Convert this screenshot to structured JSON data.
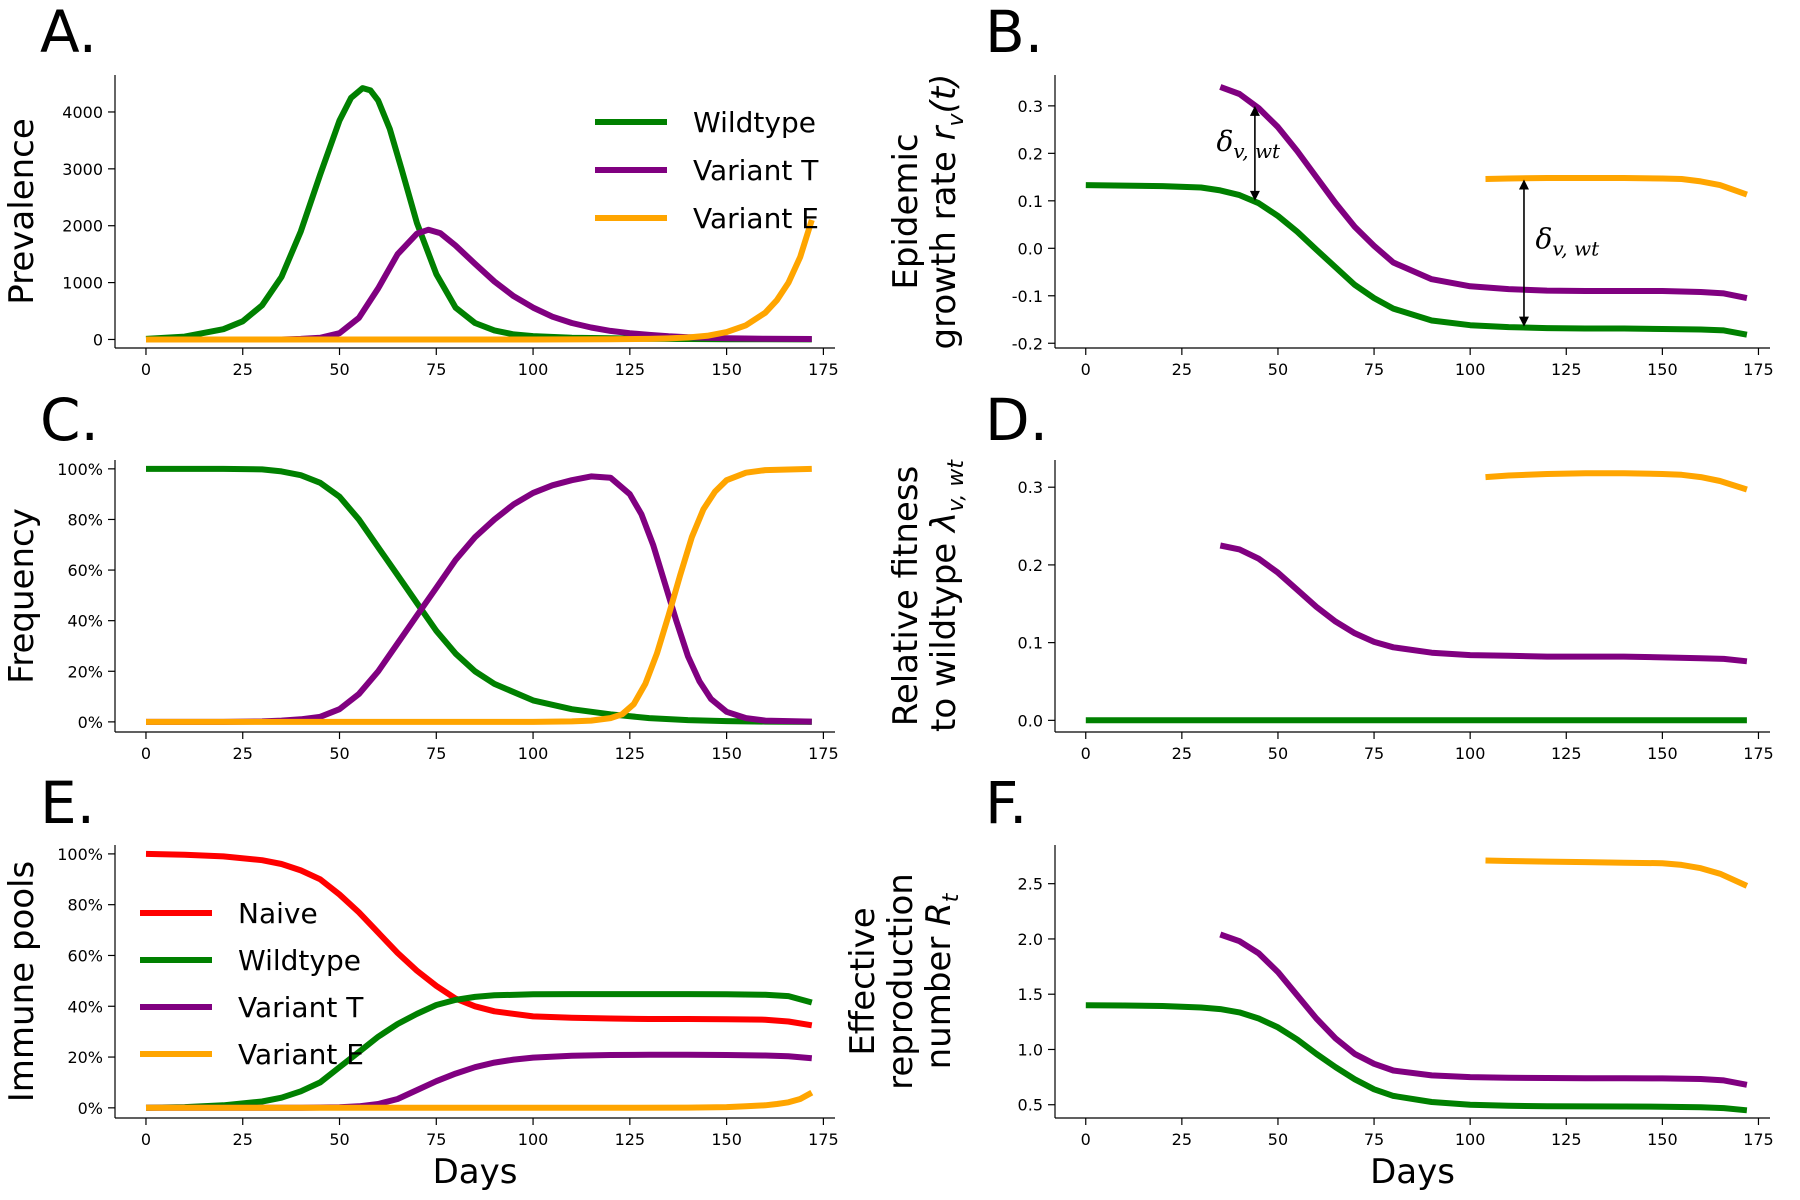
{
  "chart_data": [
    {
      "type": "line",
      "panel": "A.",
      "ylabel": "Prevalence",
      "xlabel": "",
      "xlim": [
        -8,
        178
      ],
      "ylim": [
        -150,
        4650
      ],
      "xticks": [
        0,
        25,
        50,
        75,
        100,
        125,
        150,
        175
      ],
      "yticks": [
        0,
        1000,
        2000,
        3000,
        4000
      ],
      "ytick_format": "plain",
      "legend": {
        "placement": "top-right",
        "entries": [
          "Wildtype",
          "Variant T",
          "Variant E"
        ]
      },
      "series": [
        {
          "name": "Wildtype",
          "color": "#008000",
          "x": [
            0,
            10,
            20,
            25,
            30,
            35,
            40,
            45,
            50,
            53,
            56,
            58,
            60,
            63,
            66,
            70,
            75,
            80,
            85,
            90,
            95,
            100,
            110,
            120,
            130,
            140,
            150,
            160,
            172
          ],
          "y": [
            10,
            50,
            180,
            320,
            600,
            1100,
            1900,
            2900,
            3850,
            4250,
            4420,
            4380,
            4200,
            3700,
            3000,
            2050,
            1150,
            560,
            290,
            160,
            90,
            60,
            30,
            20,
            12,
            8,
            5,
            3,
            2
          ]
        },
        {
          "name": "Variant T",
          "color": "#800080",
          "x": [
            35,
            40,
            45,
            50,
            55,
            60,
            65,
            70,
            73,
            76,
            80,
            85,
            90,
            95,
            100,
            105,
            110,
            115,
            120,
            125,
            130,
            135,
            140,
            145,
            150,
            160,
            172
          ],
          "y": [
            0,
            10,
            30,
            110,
            380,
            900,
            1500,
            1860,
            1930,
            1870,
            1650,
            1330,
            1020,
            760,
            560,
            400,
            290,
            210,
            150,
            110,
            80,
            55,
            40,
            30,
            20,
            12,
            8
          ]
        },
        {
          "name": "Variant E",
          "color": "#ffa500",
          "x": [
            0,
            20,
            40,
            60,
            80,
            100,
            110,
            120,
            130,
            135,
            140,
            145,
            150,
            155,
            160,
            163,
            166,
            169,
            172
          ],
          "y": [
            0,
            0,
            0,
            0,
            0,
            0,
            1,
            3,
            10,
            18,
            35,
            65,
            130,
            250,
            470,
            690,
            1000,
            1450,
            2100
          ]
        }
      ]
    },
    {
      "type": "line",
      "panel": "B.",
      "ylabel": "Epidemic growth rate r_v(t)",
      "ylabel_line1": "Epidemic",
      "ylabel_line2": "growth rate ",
      "ylabel_symbol": "r",
      "ylabel_sub": "v",
      "ylabel_tail": "(t)",
      "xlabel": "",
      "xlim": [
        -8,
        178
      ],
      "ylim": [
        -0.21,
        0.365
      ],
      "xticks": [
        0,
        25,
        50,
        75,
        100,
        125,
        150,
        175
      ],
      "yticks": [
        -0.2,
        -0.1,
        0.0,
        0.1,
        0.2,
        0.3
      ],
      "ytick_format": "one_decimal",
      "annotations": [
        {
          "symbol": "δ",
          "sub": "v, wt",
          "arrow_x": 44,
          "arrow_y": [
            0.1,
            0.3
          ],
          "text_x": 34,
          "text_y": 0.205
        },
        {
          "symbol": "δ",
          "sub": "v, wt",
          "arrow_x": 114,
          "arrow_y": [
            -0.165,
            0.145
          ],
          "text_x": 117,
          "text_y": 0.0
        }
      ],
      "series": [
        {
          "name": "Wildtype",
          "color": "#008000",
          "x": [
            0,
            10,
            20,
            30,
            35,
            40,
            45,
            50,
            55,
            60,
            65,
            70,
            75,
            80,
            90,
            100,
            110,
            120,
            130,
            140,
            150,
            160,
            166,
            172
          ],
          "y": [
            0.133,
            0.132,
            0.131,
            0.128,
            0.122,
            0.112,
            0.095,
            0.068,
            0.035,
            -0.003,
            -0.04,
            -0.077,
            -0.105,
            -0.127,
            -0.152,
            -0.162,
            -0.166,
            -0.168,
            -0.169,
            -0.169,
            -0.17,
            -0.171,
            -0.173,
            -0.182
          ]
        },
        {
          "name": "Variant T",
          "color": "#800080",
          "x": [
            35,
            40,
            45,
            50,
            55,
            60,
            65,
            70,
            75,
            80,
            90,
            100,
            110,
            120,
            130,
            140,
            150,
            160,
            166,
            172
          ],
          "y": [
            0.34,
            0.325,
            0.295,
            0.255,
            0.205,
            0.15,
            0.095,
            0.045,
            0.005,
            -0.03,
            -0.065,
            -0.08,
            -0.086,
            -0.089,
            -0.09,
            -0.09,
            -0.09,
            -0.092,
            -0.095,
            -0.105
          ]
        },
        {
          "name": "Variant E",
          "color": "#ffa500",
          "x": [
            104,
            110,
            120,
            130,
            140,
            150,
            155,
            160,
            165,
            172
          ],
          "y": [
            0.146,
            0.147,
            0.148,
            0.148,
            0.148,
            0.147,
            0.146,
            0.141,
            0.133,
            0.113
          ]
        }
      ]
    },
    {
      "type": "line",
      "panel": "C.",
      "ylabel": "Frequency",
      "xlabel": "",
      "xlim": [
        -8,
        178
      ],
      "ylim": [
        -0.04,
        1.035
      ],
      "xticks": [
        0,
        25,
        50,
        75,
        100,
        125,
        150,
        175
      ],
      "yticks": [
        0,
        0.2,
        0.4,
        0.6,
        0.8,
        1.0
      ],
      "ytick_format": "percent",
      "series": [
        {
          "name": "Wildtype",
          "color": "#008000",
          "x": [
            0,
            10,
            20,
            30,
            35,
            40,
            45,
            50,
            55,
            60,
            65,
            70,
            75,
            80,
            85,
            90,
            100,
            110,
            120,
            130,
            140,
            150,
            160,
            172
          ],
          "y": [
            1.0,
            1.0,
            1.0,
            0.998,
            0.99,
            0.975,
            0.945,
            0.89,
            0.8,
            0.69,
            0.58,
            0.47,
            0.36,
            0.27,
            0.2,
            0.15,
            0.085,
            0.05,
            0.03,
            0.015,
            0.007,
            0.003,
            0.001,
            0.0
          ]
        },
        {
          "name": "Variant T",
          "color": "#800080",
          "x": [
            0,
            20,
            30,
            35,
            40,
            45,
            50,
            55,
            60,
            65,
            70,
            75,
            80,
            85,
            90,
            95,
            100,
            105,
            110,
            115,
            120,
            125,
            128,
            131,
            134,
            137,
            140,
            143,
            146,
            150,
            155,
            160,
            172
          ],
          "y": [
            0,
            0,
            0.002,
            0.005,
            0.01,
            0.02,
            0.05,
            0.11,
            0.2,
            0.31,
            0.42,
            0.53,
            0.64,
            0.73,
            0.8,
            0.86,
            0.905,
            0.935,
            0.955,
            0.97,
            0.965,
            0.9,
            0.82,
            0.7,
            0.55,
            0.4,
            0.26,
            0.16,
            0.09,
            0.04,
            0.015,
            0.005,
            0.001
          ]
        },
        {
          "name": "Variant E",
          "color": "#ffa500",
          "x": [
            0,
            50,
            100,
            110,
            115,
            120,
            123,
            126,
            129,
            132,
            135,
            138,
            141,
            144,
            147,
            150,
            155,
            160,
            172
          ],
          "y": [
            0,
            0,
            0,
            0.002,
            0.005,
            0.015,
            0.03,
            0.07,
            0.15,
            0.27,
            0.42,
            0.58,
            0.73,
            0.84,
            0.91,
            0.955,
            0.985,
            0.995,
            1.0
          ]
        }
      ]
    },
    {
      "type": "line",
      "panel": "D.",
      "ylabel": "Relative fitness to wildtype λ_v,wt",
      "ylabel_line1": "Relative fitness",
      "ylabel_line2": "to wildtype ",
      "ylabel_symbol": "λ",
      "ylabel_sub": "v, wt",
      "ylabel_tail": "",
      "xlabel": "",
      "xlim": [
        -8,
        178
      ],
      "ylim": [
        -0.015,
        0.335
      ],
      "xticks": [
        0,
        25,
        50,
        75,
        100,
        125,
        150,
        175
      ],
      "yticks": [
        0.0,
        0.1,
        0.2,
        0.3
      ],
      "ytick_format": "one_decimal",
      "series": [
        {
          "name": "Wildtype",
          "color": "#008000",
          "x": [
            0,
            172
          ],
          "y": [
            0,
            0
          ]
        },
        {
          "name": "Variant T",
          "color": "#800080",
          "x": [
            35,
            40,
            45,
            50,
            55,
            60,
            65,
            70,
            75,
            80,
            90,
            100,
            110,
            120,
            130,
            140,
            150,
            160,
            166,
            172
          ],
          "y": [
            0.225,
            0.22,
            0.208,
            0.19,
            0.168,
            0.146,
            0.127,
            0.112,
            0.101,
            0.094,
            0.087,
            0.084,
            0.083,
            0.082,
            0.082,
            0.082,
            0.081,
            0.08,
            0.079,
            0.076
          ]
        },
        {
          "name": "Variant E",
          "color": "#ffa500",
          "x": [
            104,
            110,
            120,
            130,
            140,
            150,
            155,
            160,
            165,
            172
          ],
          "y": [
            0.313,
            0.315,
            0.317,
            0.318,
            0.318,
            0.317,
            0.316,
            0.313,
            0.308,
            0.297
          ]
        }
      ]
    },
    {
      "type": "line",
      "panel": "E.",
      "ylabel": "Immune pools",
      "xlabel": "Days",
      "xlim": [
        -8,
        178
      ],
      "ylim": [
        -0.04,
        1.035
      ],
      "xticks": [
        0,
        25,
        50,
        75,
        100,
        125,
        150,
        175
      ],
      "yticks": [
        0,
        0.2,
        0.4,
        0.6,
        0.8,
        1.0
      ],
      "ytick_format": "percent",
      "legend": {
        "placement": "center-left",
        "entries": [
          "Naive",
          "Wildtype",
          "Variant T",
          "Variant E"
        ]
      },
      "series": [
        {
          "name": "Naive",
          "color": "#ff0000",
          "x": [
            0,
            10,
            20,
            30,
            35,
            40,
            45,
            50,
            55,
            60,
            65,
            70,
            75,
            80,
            85,
            90,
            100,
            110,
            120,
            130,
            140,
            150,
            160,
            166,
            172
          ],
          "y": [
            1.0,
            0.997,
            0.99,
            0.975,
            0.96,
            0.935,
            0.9,
            0.84,
            0.77,
            0.69,
            0.61,
            0.54,
            0.48,
            0.43,
            0.4,
            0.38,
            0.36,
            0.355,
            0.352,
            0.35,
            0.35,
            0.349,
            0.347,
            0.34,
            0.325
          ]
        },
        {
          "name": "Wildtype",
          "color": "#008000",
          "x": [
            0,
            10,
            20,
            30,
            35,
            40,
            45,
            50,
            55,
            60,
            65,
            70,
            75,
            80,
            85,
            90,
            100,
            110,
            120,
            130,
            140,
            150,
            160,
            166,
            172
          ],
          "y": [
            0.0,
            0.003,
            0.01,
            0.025,
            0.04,
            0.065,
            0.1,
            0.16,
            0.22,
            0.28,
            0.33,
            0.37,
            0.405,
            0.425,
            0.437,
            0.443,
            0.447,
            0.448,
            0.448,
            0.448,
            0.448,
            0.447,
            0.445,
            0.44,
            0.415
          ]
        },
        {
          "name": "Variant T",
          "color": "#800080",
          "x": [
            0,
            40,
            50,
            55,
            60,
            65,
            70,
            75,
            80,
            85,
            90,
            95,
            100,
            110,
            120,
            130,
            140,
            150,
            160,
            166,
            172
          ],
          "y": [
            0.0,
            0.0,
            0.002,
            0.006,
            0.015,
            0.035,
            0.07,
            0.105,
            0.135,
            0.16,
            0.178,
            0.19,
            0.198,
            0.205,
            0.208,
            0.209,
            0.209,
            0.208,
            0.206,
            0.203,
            0.195
          ]
        },
        {
          "name": "Variant E",
          "color": "#ffa500",
          "x": [
            0,
            120,
            140,
            150,
            155,
            160,
            163,
            166,
            169,
            172
          ],
          "y": [
            0,
            0,
            0.001,
            0.003,
            0.006,
            0.01,
            0.015,
            0.022,
            0.035,
            0.06
          ]
        }
      ]
    },
    {
      "type": "line",
      "panel": "F.",
      "ylabel": "Effective reproduction number R_t",
      "ylabel_line1": "Effective",
      "ylabel_line1b": "reproduction",
      "ylabel_line2": "number ",
      "ylabel_symbol": "R",
      "ylabel_sub": "t",
      "ylabel_tail": "",
      "xlabel": "Days",
      "xlim": [
        -8,
        178
      ],
      "ylim": [
        0.38,
        2.85
      ],
      "xticks": [
        0,
        25,
        50,
        75,
        100,
        125,
        150,
        175
      ],
      "yticks": [
        0.5,
        1.0,
        1.5,
        2.0,
        2.5
      ],
      "ytick_format": "one_decimal",
      "series": [
        {
          "name": "Wildtype",
          "color": "#008000",
          "x": [
            0,
            10,
            20,
            30,
            35,
            40,
            45,
            50,
            55,
            60,
            65,
            70,
            75,
            80,
            90,
            100,
            110,
            120,
            130,
            140,
            150,
            160,
            166,
            172
          ],
          "y": [
            1.4,
            1.398,
            1.393,
            1.38,
            1.365,
            1.335,
            1.28,
            1.2,
            1.09,
            0.96,
            0.84,
            0.73,
            0.64,
            0.58,
            0.525,
            0.5,
            0.49,
            0.487,
            0.485,
            0.484,
            0.482,
            0.478,
            0.47,
            0.45
          ]
        },
        {
          "name": "Variant T",
          "color": "#800080",
          "x": [
            35,
            40,
            45,
            50,
            55,
            60,
            65,
            70,
            75,
            80,
            90,
            100,
            110,
            120,
            130,
            140,
            150,
            160,
            166,
            172
          ],
          "y": [
            2.04,
            1.98,
            1.87,
            1.7,
            1.49,
            1.28,
            1.1,
            0.96,
            0.87,
            0.81,
            0.765,
            0.75,
            0.745,
            0.742,
            0.74,
            0.74,
            0.738,
            0.733,
            0.72,
            0.68
          ]
        },
        {
          "name": "Variant E",
          "color": "#ffa500",
          "x": [
            104,
            110,
            120,
            130,
            140,
            150,
            155,
            160,
            165,
            172
          ],
          "y": [
            2.71,
            2.705,
            2.7,
            2.695,
            2.69,
            2.685,
            2.67,
            2.64,
            2.59,
            2.48
          ]
        }
      ]
    }
  ]
}
